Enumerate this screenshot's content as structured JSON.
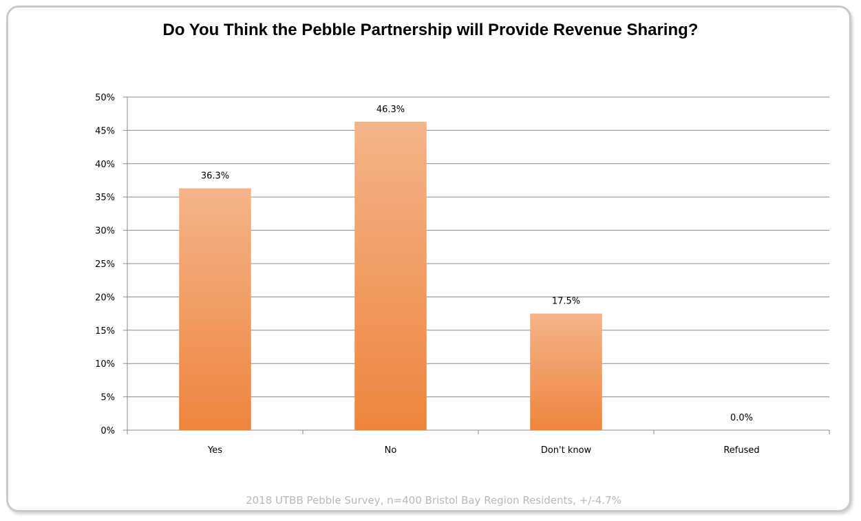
{
  "chart_data": {
    "type": "bar",
    "title": "Do You Think the Pebble Partnership will Provide Revenue Sharing?",
    "categories": [
      "Yes",
      "No",
      "Don't know",
      "Refused"
    ],
    "values": [
      36.3,
      46.3,
      17.5,
      0.0
    ],
    "data_labels": [
      "36.3%",
      "46.3%",
      "17.5%",
      "0.0%"
    ],
    "ylim": [
      0,
      50
    ],
    "yticks": [
      0,
      5,
      10,
      15,
      20,
      25,
      30,
      35,
      40,
      45,
      50
    ],
    "ytick_labels": [
      "0%",
      "5%",
      "10%",
      "15%",
      "20%",
      "25%",
      "30%",
      "35%",
      "40%",
      "45%",
      "50%"
    ],
    "grid": true,
    "legend": "none",
    "bar_color_top": "#f4b48a",
    "bar_color_bottom": "#ee853e",
    "footnote": "2018 UTBB Pebble Survey, n=400 Bristol Bay Region Residents, +/-4.7%"
  }
}
